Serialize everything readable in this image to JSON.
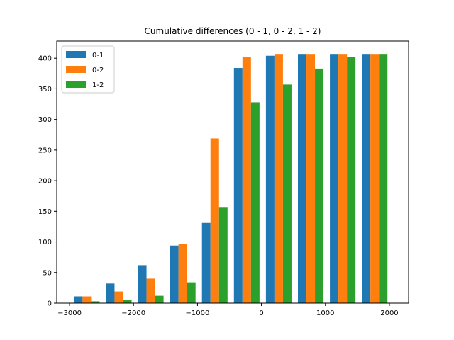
{
  "chart_data": {
    "type": "bar",
    "title": "Cumulative differences (0 - 1, 0 - 2, 1 - 2)",
    "xlabel": "",
    "ylabel": "",
    "xlim": [
      -3200,
      2300
    ],
    "ylim": [
      0,
      428
    ],
    "x_ticks": [
      -3000,
      -2000,
      -1000,
      0,
      1000,
      2000
    ],
    "x_tick_labels": [
      "−3000",
      "−2000",
      "−1000",
      "0",
      "1000",
      "2000"
    ],
    "y_ticks": [
      0,
      50,
      100,
      150,
      200,
      250,
      300,
      350,
      400
    ],
    "y_tick_labels": [
      "0",
      "50",
      "100",
      "150",
      "200",
      "250",
      "300",
      "350",
      "400"
    ],
    "bins": [
      [
        -2980,
        -2480
      ],
      [
        -2480,
        -1980
      ],
      [
        -1980,
        -1480
      ],
      [
        -1480,
        -980
      ],
      [
        -980,
        -480
      ],
      [
        -480,
        20
      ],
      [
        20,
        520
      ],
      [
        520,
        1020
      ],
      [
        1020,
        1520
      ],
      [
        1520,
        2020
      ]
    ],
    "series": [
      {
        "name": "0-1",
        "color": "#1f77b4",
        "values": [
          11,
          32,
          62,
          94,
          131,
          384,
          404,
          407,
          407,
          407
        ]
      },
      {
        "name": "0-2",
        "color": "#ff7f0e",
        "values": [
          11,
          19,
          40,
          96,
          269,
          402,
          407,
          407,
          407,
          407
        ]
      },
      {
        "name": "1-2",
        "color": "#2ca02c",
        "values": [
          3,
          5,
          12,
          34,
          157,
          328,
          357,
          383,
          402,
          407
        ]
      }
    ],
    "legend_position": "top-left",
    "grid": false
  }
}
